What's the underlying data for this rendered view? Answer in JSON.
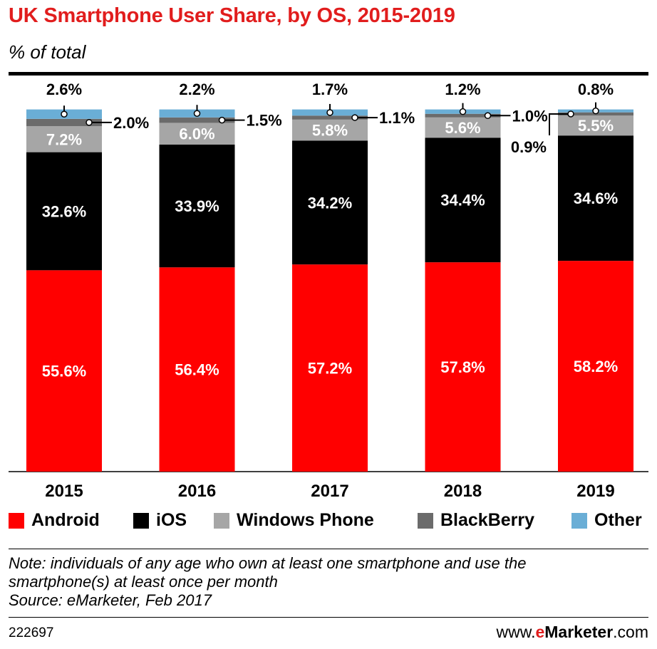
{
  "header": {
    "title": "UK Smartphone User Share, by OS, 2015-2019",
    "subtitle": "% of total"
  },
  "chart_data": {
    "type": "bar",
    "stacked": true,
    "categories": [
      "2015",
      "2016",
      "2017",
      "2018",
      "2019"
    ],
    "series": [
      {
        "name": "Android",
        "color": "#ff0000",
        "values": [
          55.6,
          56.4,
          57.2,
          57.8,
          58.2
        ],
        "labels": [
          "55.6%",
          "56.4%",
          "57.2%",
          "57.8%",
          "58.2%"
        ]
      },
      {
        "name": "iOS",
        "color": "#000000",
        "values": [
          32.6,
          33.9,
          34.2,
          34.4,
          34.6
        ],
        "labels": [
          "32.6%",
          "33.9%",
          "34.2%",
          "34.4%",
          "34.6%"
        ]
      },
      {
        "name": "Windows Phone",
        "color": "#a6a6a6",
        "values": [
          7.2,
          6.0,
          5.8,
          5.6,
          5.5
        ],
        "labels": [
          "7.2%",
          "6.0%",
          "5.8%",
          "5.6%",
          "5.5%"
        ]
      },
      {
        "name": "BlackBerry",
        "color": "#6b6b6b",
        "values": [
          2.0,
          1.5,
          1.1,
          1.0,
          0.9
        ],
        "labels": [
          "2.0%",
          "1.5%",
          "1.1%",
          "1.0%",
          "0.9%"
        ]
      },
      {
        "name": "Other",
        "color": "#6aaed6",
        "values": [
          2.6,
          2.2,
          1.7,
          1.2,
          0.8
        ],
        "labels": [
          "2.6%",
          "2.2%",
          "1.7%",
          "1.2%",
          "0.8%"
        ]
      }
    ],
    "ylim": [
      0,
      100
    ],
    "grid": false,
    "legend_position": "bottom"
  },
  "legend": [
    "Android",
    "iOS",
    "Windows Phone",
    "BlackBerry",
    "Other"
  ],
  "note": {
    "line1": "Note: individuals of any age who own at least one smartphone and use the",
    "line2": "smartphone(s) at least once per month",
    "source": "Source: eMarketer, Feb 2017"
  },
  "footer": {
    "id": "222697",
    "brand_prefix": "www.",
    "brand_e": "e",
    "brand_name": "Marketer",
    "brand_suffix": ".com"
  }
}
